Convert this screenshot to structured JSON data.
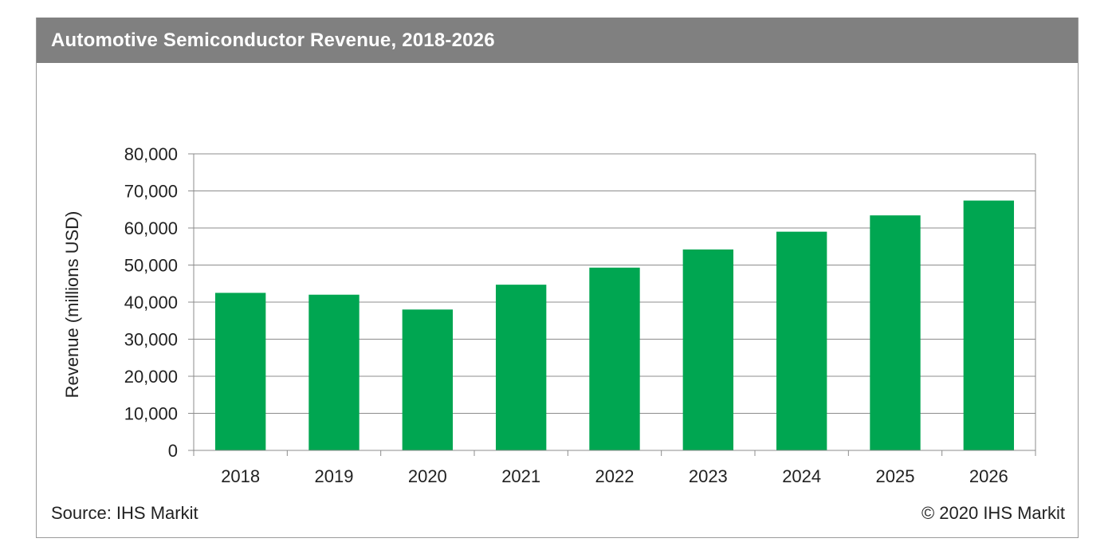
{
  "header": {
    "title": "Automotive Semiconductor Revenue, 2018-2026"
  },
  "footer": {
    "source": "Source: IHS Markit",
    "copyright": "© 2020 IHS Markit"
  },
  "colors": {
    "bar": "#00A651",
    "title_bar": "#808080",
    "grid": "#8c8c8c"
  },
  "chart_data": {
    "type": "bar",
    "title": "Automotive Semiconductor Revenue, 2018-2026",
    "xlabel": "",
    "ylabel": "Revenue (millions USD)",
    "categories": [
      "2018",
      "2019",
      "2020",
      "2021",
      "2022",
      "2023",
      "2024",
      "2025",
      "2026"
    ],
    "values": [
      42500,
      42000,
      38000,
      44700,
      49300,
      54200,
      59000,
      63400,
      67400
    ],
    "ylim": [
      0,
      80000
    ],
    "yticks": [
      0,
      10000,
      20000,
      30000,
      40000,
      50000,
      60000,
      70000,
      80000
    ],
    "ytick_labels": [
      "0",
      "10,000",
      "20,000",
      "30,000",
      "40,000",
      "50,000",
      "60,000",
      "70,000",
      "80,000"
    ],
    "grid": true,
    "legend": "none"
  }
}
